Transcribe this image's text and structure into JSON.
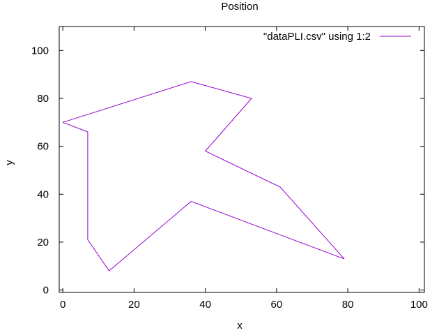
{
  "chart_data": {
    "type": "line",
    "title": "Position",
    "xlabel": "x",
    "ylabel": "y",
    "xlim": [
      -1,
      101.5
    ],
    "ylim": [
      -1,
      110
    ],
    "x_ticks": [
      0,
      20,
      40,
      60,
      80,
      100
    ],
    "y_ticks": [
      0,
      20,
      40,
      60,
      80,
      100
    ],
    "grid": false,
    "legend_position": "top-right",
    "series": [
      {
        "name": "\"dataPLI.csv\" using 1:2",
        "color": "#9400d3",
        "x": [
          0,
          36,
          53,
          40,
          61,
          79,
          36,
          13,
          7,
          7,
          0
        ],
        "y": [
          70,
          87,
          80,
          58,
          43,
          13,
          37,
          8,
          21,
          66,
          70
        ]
      }
    ]
  }
}
